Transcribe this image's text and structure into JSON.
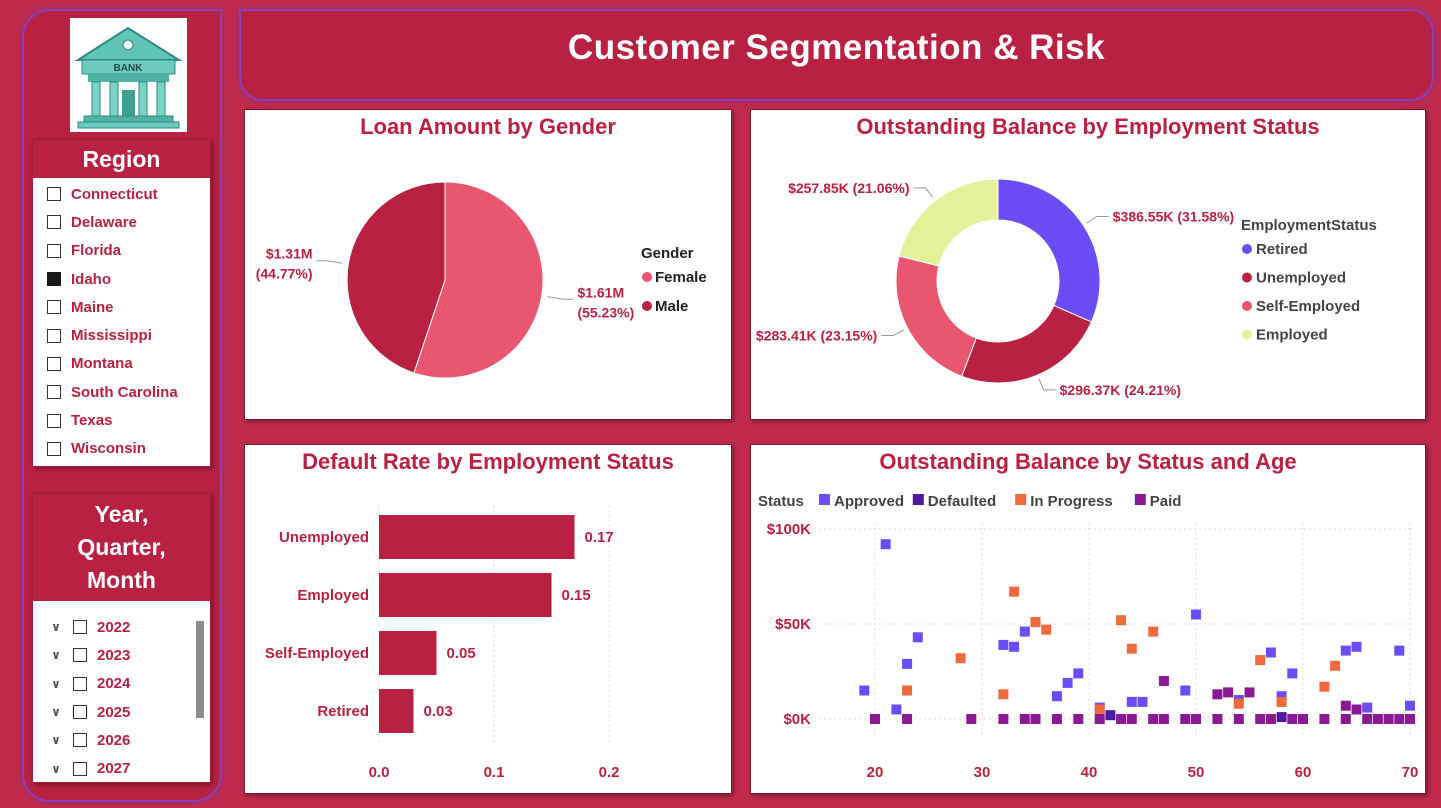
{
  "header": {
    "title": "Customer Segmentation & Risk"
  },
  "logo": {
    "label": "BANK",
    "icon": "bank-building-icon"
  },
  "region_slicer": {
    "title": "Region",
    "items": [
      {
        "label": "Connecticut",
        "checked": false
      },
      {
        "label": "Delaware",
        "checked": false
      },
      {
        "label": "Florida",
        "checked": false
      },
      {
        "label": "Idaho",
        "checked": true
      },
      {
        "label": "Maine",
        "checked": false
      },
      {
        "label": "Mississippi",
        "checked": false
      },
      {
        "label": "Montana",
        "checked": false
      },
      {
        "label": "South Carolina",
        "checked": false
      },
      {
        "label": "Texas",
        "checked": false
      },
      {
        "label": "Wisconsin",
        "checked": false
      }
    ]
  },
  "date_slicer": {
    "title_lines": [
      "Year,",
      "Quarter,",
      "Month"
    ],
    "items": [
      "2022",
      "2023",
      "2024",
      "2025",
      "2026",
      "2027"
    ]
  },
  "chart_data": [
    {
      "type": "pie",
      "title": "Loan Amount by Gender",
      "legend_title": "Gender",
      "legend_position": "right",
      "slices": [
        {
          "name": "Female",
          "value": 1.61,
          "label": "$1.61M",
          "pct_label": "(55.23%)",
          "color": "#e8566f"
        },
        {
          "name": "Male",
          "value": 1.31,
          "label": "$1.31M",
          "pct_label": "(44.77%)",
          "color": "#b82141"
        }
      ]
    },
    {
      "type": "pie",
      "subtype": "donut",
      "title": "Outstanding Balance by Employment Status",
      "legend_title": "EmploymentStatus",
      "legend_position": "right",
      "slices": [
        {
          "name": "Retired",
          "value": 386.55,
          "label": "$386.55K (31.58%)",
          "color": "#6b4cf6"
        },
        {
          "name": "Unemployed",
          "value": 296.37,
          "label": "$296.37K (24.21%)",
          "color": "#b82141"
        },
        {
          "name": "Self-Employed",
          "value": 283.41,
          "label": "$283.41K (23.15%)",
          "color": "#e8566f"
        },
        {
          "name": "Employed",
          "value": 257.85,
          "label": "$257.85K (21.06%)",
          "color": "#e5f09a"
        }
      ]
    },
    {
      "type": "bar",
      "orientation": "horizontal",
      "title": "Default Rate by Employment Status",
      "categories": [
        "Unemployed",
        "Employed",
        "Self-Employed",
        "Retired"
      ],
      "values": [
        0.17,
        0.15,
        0.05,
        0.03
      ],
      "value_labels": [
        "0.17",
        "0.15",
        "0.05",
        "0.03"
      ],
      "xlim": [
        0,
        0.25
      ],
      "xticks": [
        "0.0",
        "0.1",
        "0.2"
      ],
      "grid": true,
      "color": "#b82141"
    },
    {
      "type": "scatter",
      "title": "Outstanding Balance by Status and Age",
      "legend_title": "Status",
      "legend_position": "top-left",
      "xlim": [
        17,
        70
      ],
      "ylim": [
        -5000,
        100000
      ],
      "xticks": [
        "20",
        "30",
        "40",
        "50",
        "60",
        "70"
      ],
      "yticks": [
        "$0K",
        "$50K",
        "$100K"
      ],
      "grid": true,
      "series": [
        {
          "name": "Approved",
          "color": "#6b4cf6",
          "points": [
            [
              19,
              15000
            ],
            [
              21,
              92000
            ],
            [
              22,
              5000
            ],
            [
              23,
              29000
            ],
            [
              24,
              43000
            ],
            [
              32,
              39000
            ],
            [
              33,
              38000
            ],
            [
              34,
              46000
            ],
            [
              35,
              51000
            ],
            [
              37,
              12000
            ],
            [
              38,
              19000
            ],
            [
              39,
              24000
            ],
            [
              41,
              6000
            ],
            [
              44,
              9000
            ],
            [
              45,
              9000
            ],
            [
              49,
              15000
            ],
            [
              50,
              55000
            ],
            [
              54,
              10000
            ],
            [
              57,
              35000
            ],
            [
              58,
              12000
            ],
            [
              59,
              24000
            ],
            [
              64,
              36000
            ],
            [
              65,
              38000
            ],
            [
              66,
              6000
            ],
            [
              69,
              36000
            ],
            [
              70,
              7000
            ]
          ]
        },
        {
          "name": "Defaulted",
          "color": "#4c1a9e",
          "points": [
            [
              42,
              2000
            ],
            [
              58,
              1000
            ]
          ]
        },
        {
          "name": "In Progress",
          "color": "#ef6a3c",
          "points": [
            [
              23,
              15000
            ],
            [
              28,
              32000
            ],
            [
              32,
              13000
            ],
            [
              33,
              67000
            ],
            [
              35,
              51000
            ],
            [
              36,
              47000
            ],
            [
              41,
              5000
            ],
            [
              43,
              52000
            ],
            [
              44,
              37000
            ],
            [
              46,
              46000
            ],
            [
              54,
              8000
            ],
            [
              56,
              31000
            ],
            [
              58,
              9000
            ],
            [
              62,
              17000
            ],
            [
              63,
              28000
            ]
          ]
        },
        {
          "name": "Paid",
          "color": "#8a1a94",
          "points": [
            [
              20,
              0
            ],
            [
              23,
              0
            ],
            [
              29,
              0
            ],
            [
              32,
              0
            ],
            [
              34,
              0
            ],
            [
              35,
              0
            ],
            [
              37,
              0
            ],
            [
              39,
              0
            ],
            [
              41,
              0
            ],
            [
              43,
              0
            ],
            [
              44,
              0
            ],
            [
              46,
              0
            ],
            [
              47,
              0
            ],
            [
              49,
              0
            ],
            [
              50,
              0
            ],
            [
              52,
              0
            ],
            [
              54,
              0
            ],
            [
              56,
              0
            ],
            [
              57,
              0
            ],
            [
              59,
              0
            ],
            [
              60,
              0
            ],
            [
              62,
              0
            ],
            [
              64,
              0
            ],
            [
              66,
              0
            ],
            [
              67,
              0
            ],
            [
              69,
              0
            ],
            [
              70,
              0
            ],
            [
              47,
              20000
            ],
            [
              52,
              13000
            ],
            [
              53,
              14000
            ],
            [
              55,
              14000
            ],
            [
              64,
              7000
            ],
            [
              65,
              5000
            ],
            [
              68,
              0
            ]
          ]
        }
      ]
    }
  ]
}
